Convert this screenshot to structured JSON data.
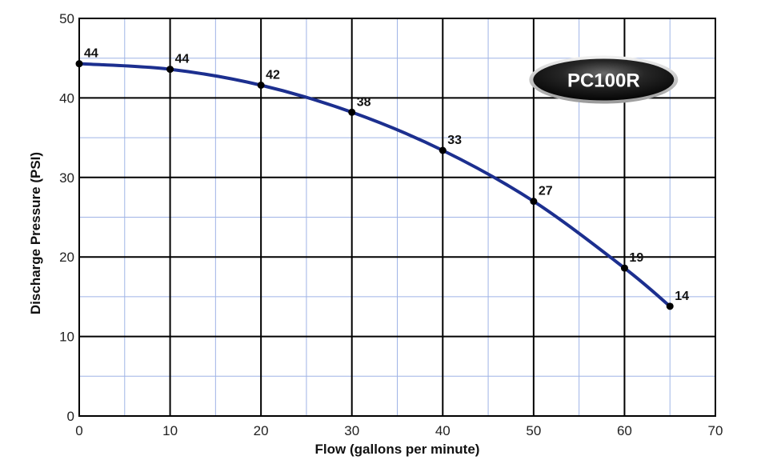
{
  "chart_data": {
    "type": "line",
    "xlabel": "Flow (gallons per minute)",
    "ylabel": "Discharge Pressure (PSI)",
    "xlim": [
      0,
      70
    ],
    "ylim": [
      0,
      50
    ],
    "x_ticks": [
      0,
      10,
      20,
      30,
      40,
      50,
      60,
      70
    ],
    "y_ticks": [
      0,
      10,
      20,
      30,
      40,
      50
    ],
    "grid": true,
    "series": [
      {
        "x": [
          0,
          10,
          20,
          30,
          40,
          50,
          60,
          65
        ],
        "y": [
          44.3,
          43.6,
          41.6,
          38.2,
          33.4,
          27.0,
          18.6,
          13.8
        ],
        "labels": [
          "44",
          "44",
          "42",
          "38",
          "33",
          "27",
          "19",
          "14"
        ],
        "color": "#1c2f8f"
      }
    ],
    "badge": "PC100R"
  }
}
